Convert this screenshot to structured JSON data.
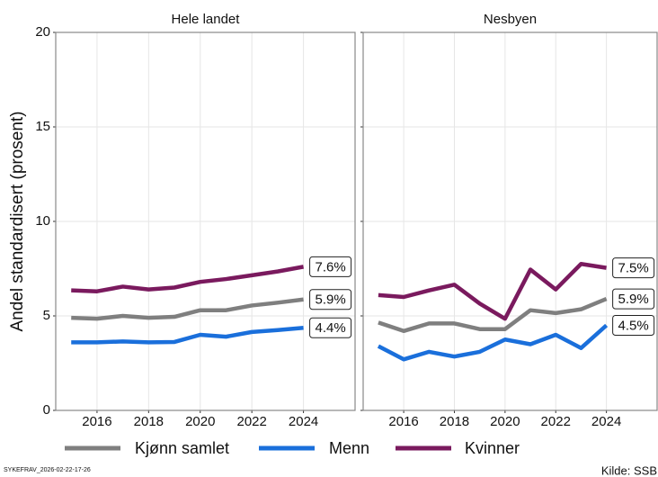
{
  "chart_data": [
    {
      "type": "line",
      "title": "Hele landet",
      "ylabel": "Andel standardisert (prosent)",
      "x": [
        2015,
        2016,
        2017,
        2018,
        2019,
        2020,
        2021,
        2022,
        2023,
        2024
      ],
      "xlim": [
        2014.4,
        2026
      ],
      "xticks": [
        2016,
        2018,
        2020,
        2022,
        2024
      ],
      "ylim": [
        0,
        20
      ],
      "yticks": [
        0,
        5,
        10,
        15,
        20
      ],
      "grid": true,
      "series": [
        {
          "name": "Kjønn samlet",
          "color": "#7f7f7f",
          "values": [
            4.9,
            4.85,
            5.0,
            4.9,
            4.95,
            5.3,
            5.3,
            5.55,
            5.7,
            5.87
          ],
          "value_labels": [
            null,
            null,
            null,
            null,
            null,
            null,
            null,
            null,
            null,
            "5.9%"
          ]
        },
        {
          "name": "Menn",
          "color": "#1a6fdb",
          "values": [
            3.6,
            3.6,
            3.65,
            3.6,
            3.62,
            4.0,
            3.9,
            4.15,
            4.25,
            4.37
          ],
          "value_labels": [
            null,
            null,
            null,
            null,
            null,
            null,
            null,
            null,
            null,
            "4.4%"
          ]
        },
        {
          "name": "Kvinner",
          "color": "#7a1a5e",
          "values": [
            6.35,
            6.3,
            6.55,
            6.4,
            6.5,
            6.8,
            6.95,
            7.15,
            7.35,
            7.6
          ],
          "value_labels": [
            null,
            null,
            null,
            null,
            null,
            null,
            null,
            null,
            null,
            "7.6%"
          ]
        }
      ],
      "note": "SYKEFRAV_2026-02-22-17-26"
    },
    {
      "type": "line",
      "title": "Nesbyen",
      "x": [
        2015,
        2016,
        2017,
        2018,
        2019,
        2020,
        2021,
        2022,
        2023,
        2024
      ],
      "xlim": [
        2014.4,
        2026
      ],
      "xticks": [
        2016,
        2018,
        2020,
        2022,
        2024
      ],
      "ylim": [
        0,
        20
      ],
      "yticks": [
        0,
        5,
        10,
        15,
        20
      ],
      "grid": true,
      "series": [
        {
          "name": "Kjønn samlet",
          "color": "#7f7f7f",
          "values": [
            4.65,
            4.2,
            4.6,
            4.6,
            4.3,
            4.3,
            5.3,
            5.15,
            5.35,
            5.9
          ],
          "value_labels": [
            null,
            null,
            null,
            null,
            null,
            null,
            null,
            null,
            null,
            "5.9%"
          ]
        },
        {
          "name": "Menn",
          "color": "#1a6fdb",
          "values": [
            3.4,
            2.7,
            3.1,
            2.85,
            3.1,
            3.75,
            3.5,
            4.0,
            3.3,
            4.5
          ],
          "value_labels": [
            null,
            null,
            null,
            null,
            null,
            null,
            null,
            null,
            null,
            "4.5%"
          ]
        },
        {
          "name": "Kvinner",
          "color": "#7a1a5e",
          "values": [
            6.1,
            6.0,
            6.35,
            6.65,
            5.65,
            4.85,
            7.45,
            6.4,
            7.75,
            7.54
          ],
          "value_labels": [
            null,
            null,
            null,
            null,
            null,
            null,
            null,
            null,
            null,
            "7.5%"
          ]
        }
      ],
      "source": "Kilde: SSB"
    }
  ]
}
